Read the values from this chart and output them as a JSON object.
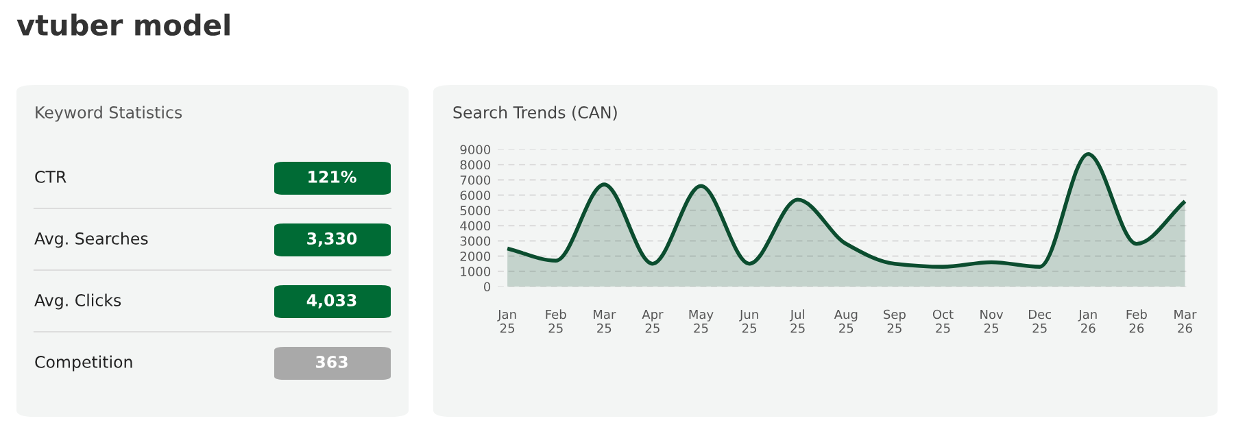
{
  "chart_data": [
    {
      "type": "other",
      "title": "vtuber model",
      "subtitle": "Keyword Statistics",
      "categories": [
        "CTR",
        "Avg. Searches",
        "Avg. Clicks",
        "Competition"
      ],
      "annotations": [
        "121%",
        "3,330",
        "4,033",
        "363"
      ],
      "colors": [
        "#006b35",
        "#006b35",
        "#006b35",
        "#a9a9a9"
      ]
    },
    {
      "type": "area",
      "title": "Search Trends (CAN)",
      "categories": [
        "Jan\n25",
        "Feb\n25",
        "Mar\n25",
        "Apr\n25",
        "May\n25",
        "Jun\n25",
        "Jul\n25",
        "Aug\n25",
        "Sep\n25",
        "Oct\n25",
        "Nov\n25",
        "Dec\n25",
        "Jan\n26",
        "Feb\n26",
        "Mar\n26"
      ],
      "series": [
        {
          "color": "#0b4d2f",
          "values": [
            2500,
            1700,
            6700,
            1500,
            6600,
            1500,
            5700,
            2800,
            1500,
            1300,
            1600,
            1300,
            8700,
            2800,
            5600
          ]
        }
      ],
      "ylim": [
        0,
        9000
      ],
      "yticks": [
        0,
        1000,
        2000,
        3000,
        4000,
        5000,
        6000,
        7000,
        8000,
        9000
      ],
      "grid": "y"
    }
  ]
}
